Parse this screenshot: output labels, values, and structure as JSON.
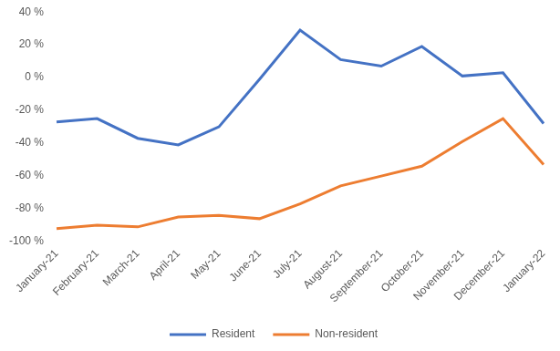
{
  "chart_data": {
    "type": "line",
    "categories": [
      "January-21",
      "February-21",
      "March-21",
      "April-21",
      "May-21",
      "June-21",
      "July-21",
      "August-21",
      "September-21",
      "October-21",
      "November-21",
      "December-21",
      "January-22"
    ],
    "series": [
      {
        "name": "Resident",
        "color": "#4472c4",
        "values": [
          -27,
          -25,
          -37,
          -41,
          -30,
          -1,
          29,
          11,
          7,
          19,
          1,
          3,
          -28
        ]
      },
      {
        "name": "Non-resident",
        "color": "#ed7d31",
        "values": [
          -92,
          -90,
          -91,
          -85,
          -84,
          -86,
          -77,
          -66,
          -60,
          -54,
          -39,
          -25,
          -53
        ]
      }
    ],
    "ylim": [
      -100,
      40
    ],
    "yticks": [
      {
        "value": -100,
        "label": "-100 %"
      },
      {
        "value": -80,
        "label": "-80 %"
      },
      {
        "value": -60,
        "label": "-60 %"
      },
      {
        "value": -40,
        "label": "-40 %"
      },
      {
        "value": -20,
        "label": "-20 %"
      },
      {
        "value": 0,
        "label": "0 %"
      },
      {
        "value": 20,
        "label": "20 %"
      },
      {
        "value": 40,
        "label": "40 %"
      }
    ],
    "grid": false,
    "legend": "bottom"
  }
}
